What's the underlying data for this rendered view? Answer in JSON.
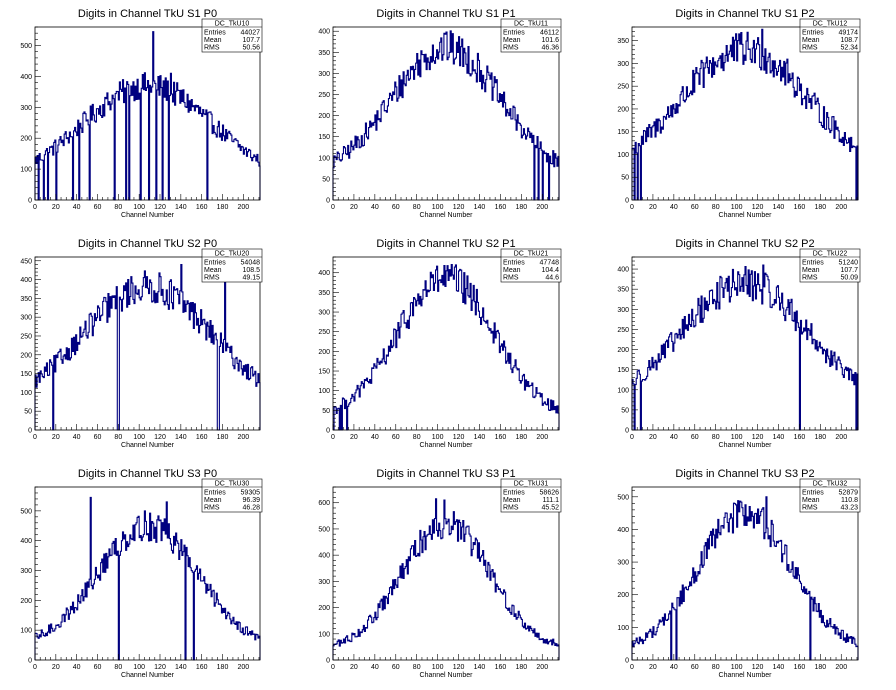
{
  "canvas": {
    "background": "#ffffff",
    "line_color": "#000080"
  },
  "chart_data": [
    {
      "type": "histogram",
      "title": "Digits in Channel TkU S1 P0",
      "xlabel": "Channel Number",
      "xlim": [
        0,
        216
      ],
      "ylim": [
        0,
        560
      ],
      "xticks": [
        0,
        20,
        40,
        60,
        80,
        100,
        120,
        140,
        160,
        180,
        200
      ],
      "yticks": [
        0,
        100,
        200,
        300,
        400,
        500
      ],
      "shape": {
        "peak": 370,
        "base": 60,
        "sigma": 62,
        "spikes": [
          [
            113,
            545
          ],
          [
            130,
            410
          ]
        ],
        "dips": [
          3,
          8,
          12,
          20,
          36,
          42,
          52,
          76,
          87,
          90,
          101,
          109,
          116,
          122,
          128,
          165
        ]
      },
      "stats": {
        "name": "DC_TkU10",
        "entries": "44027",
        "mean": "107.7",
        "rms": "50.56"
      }
    },
    {
      "type": "histogram",
      "title": "Digits in Channel TkU S1 P1",
      "xlabel": "Channel Number",
      "xlim": [
        0,
        216
      ],
      "ylim": [
        0,
        410
      ],
      "xticks": [
        0,
        20,
        40,
        60,
        80,
        100,
        120,
        140,
        160,
        180,
        200
      ],
      "yticks": [
        0,
        50,
        100,
        150,
        200,
        250,
        300,
        350,
        400
      ],
      "shape": {
        "peak": 360,
        "base": 55,
        "sigma": 52,
        "spikes": [
          [
            106,
            395
          ]
        ],
        "dips": [
          192,
          196,
          200,
          206
        ]
      },
      "stats": {
        "name": "DC_TkU11",
        "entries": "46112",
        "mean": "101.6",
        "rms": "46.36"
      }
    },
    {
      "type": "histogram",
      "title": "Digits in Channel TkU S1 P2",
      "xlabel": "Channel Number",
      "xlim": [
        0,
        216
      ],
      "ylim": [
        0,
        380
      ],
      "xticks": [
        0,
        20,
        40,
        60,
        80,
        100,
        120,
        140,
        160,
        180,
        200
      ],
      "yticks": [
        0,
        50,
        100,
        150,
        200,
        250,
        300,
        350
      ],
      "shape": {
        "peak": 330,
        "base": 60,
        "sigma": 60,
        "spikes": [
          [
            124,
            375
          ]
        ],
        "dips": [
          2,
          5,
          8,
          214
        ]
      },
      "stats": {
        "name": "DC_TkU12",
        "entries": "49174",
        "mean": "108.7",
        "rms": "52.34"
      }
    },
    {
      "type": "histogram",
      "title": "Digits in Channel TkU S2 P0",
      "xlabel": "Channel Number",
      "xlim": [
        0,
        216
      ],
      "ylim": [
        0,
        460
      ],
      "xticks": [
        0,
        20,
        40,
        60,
        80,
        100,
        120,
        140,
        160,
        180,
        200
      ],
      "yticks": [
        0,
        50,
        100,
        150,
        200,
        250,
        300,
        350,
        400,
        450
      ],
      "shape": {
        "peak": 380,
        "base": 60,
        "sigma": 62,
        "spikes": [
          [
            140,
            440
          ],
          [
            182,
            400
          ]
        ],
        "dips": [
          17,
          79,
          80,
          175,
          176
        ]
      },
      "stats": {
        "name": "DC_TkU20",
        "entries": "54048",
        "mean": "108.5",
        "rms": "49.15"
      }
    },
    {
      "type": "histogram",
      "title": "Digits in Channel TkU S2 P1",
      "xlabel": "Channel Number",
      "xlim": [
        0,
        216
      ],
      "ylim": [
        0,
        440
      ],
      "xticks": [
        0,
        20,
        40,
        60,
        80,
        100,
        120,
        140,
        160,
        180,
        200
      ],
      "yticks": [
        0,
        50,
        100,
        150,
        200,
        250,
        300,
        350,
        400
      ],
      "shape": {
        "peak": 385,
        "base": 30,
        "sigma": 46,
        "spikes": [],
        "dips": [
          0,
          6,
          8,
          13
        ]
      },
      "stats": {
        "name": "DC_TkU21",
        "entries": "47748",
        "mean": "104.4",
        "rms": "44.6"
      }
    },
    {
      "type": "histogram",
      "title": "Digits in Channel TkU S2 P2",
      "xlabel": "Channel Number",
      "xlim": [
        0,
        216
      ],
      "ylim": [
        0,
        430
      ],
      "xticks": [
        0,
        20,
        40,
        60,
        80,
        100,
        120,
        140,
        160,
        180,
        200
      ],
      "yticks": [
        0,
        50,
        100,
        150,
        200,
        250,
        300,
        350,
        400
      ],
      "shape": {
        "peak": 365,
        "base": 60,
        "sigma": 60,
        "spikes": [
          [
            125,
            410
          ]
        ],
        "dips": [
          2,
          8,
          160,
          214
        ]
      },
      "stats": {
        "name": "DC_TkU22",
        "entries": "51240",
        "mean": "107.7",
        "rms": "50.09"
      }
    },
    {
      "type": "histogram",
      "title": "Digits in Channel TkU S3 P0",
      "xlabel": "Channel Number",
      "xlim": [
        0,
        216
      ],
      "ylim": [
        0,
        580
      ],
      "xticks": [
        0,
        20,
        40,
        60,
        80,
        100,
        120,
        140,
        160,
        180,
        200
      ],
      "yticks": [
        0,
        100,
        200,
        300,
        400,
        500
      ],
      "shape": {
        "peak": 450,
        "base": 40,
        "sigma": 48,
        "spikes": [
          [
            53,
            545
          ],
          [
            126,
            530
          ]
        ],
        "dips": [
          80,
          144,
          152
        ]
      },
      "stats": {
        "name": "DC_TkU30",
        "entries": "59305",
        "mean": "96.39",
        "rms": "46.28"
      }
    },
    {
      "type": "histogram",
      "title": "Digits in Channel TkU S3 P1",
      "xlabel": "Channel Number",
      "xlim": [
        0,
        216
      ],
      "ylim": [
        0,
        660
      ],
      "xticks": [
        0,
        20,
        40,
        60,
        80,
        100,
        120,
        140,
        160,
        180,
        200
      ],
      "yticks": [
        0,
        100,
        200,
        300,
        400,
        500,
        600
      ],
      "shape": {
        "peak": 520,
        "base": 40,
        "sigma": 42,
        "spikes": [
          [
            98,
            615
          ],
          [
            106,
            610
          ]
        ],
        "dips": []
      },
      "stats": {
        "name": "DC_TkU31",
        "entries": "58626",
        "mean": "111.1",
        "rms": "45.52"
      }
    },
    {
      "type": "histogram",
      "title": "Digits in Channel TkU S3 P2",
      "xlabel": "Channel Number",
      "xlim": [
        0,
        216
      ],
      "ylim": [
        0,
        530
      ],
      "xticks": [
        0,
        20,
        40,
        60,
        80,
        100,
        120,
        140,
        160,
        180,
        200
      ],
      "yticks": [
        0,
        100,
        200,
        300,
        400,
        500
      ],
      "shape": {
        "peak": 450,
        "base": 25,
        "sigma": 45,
        "spikes": [
          [
            128,
            500
          ]
        ],
        "dips": [
          37,
          42,
          170
        ]
      },
      "stats": {
        "name": "DC_TkU32",
        "entries": "52879",
        "mean": "110.8",
        "rms": "43.23"
      }
    }
  ],
  "stat_labels": {
    "entries": "Entries",
    "mean": "Mean",
    "rms": "RMS"
  }
}
